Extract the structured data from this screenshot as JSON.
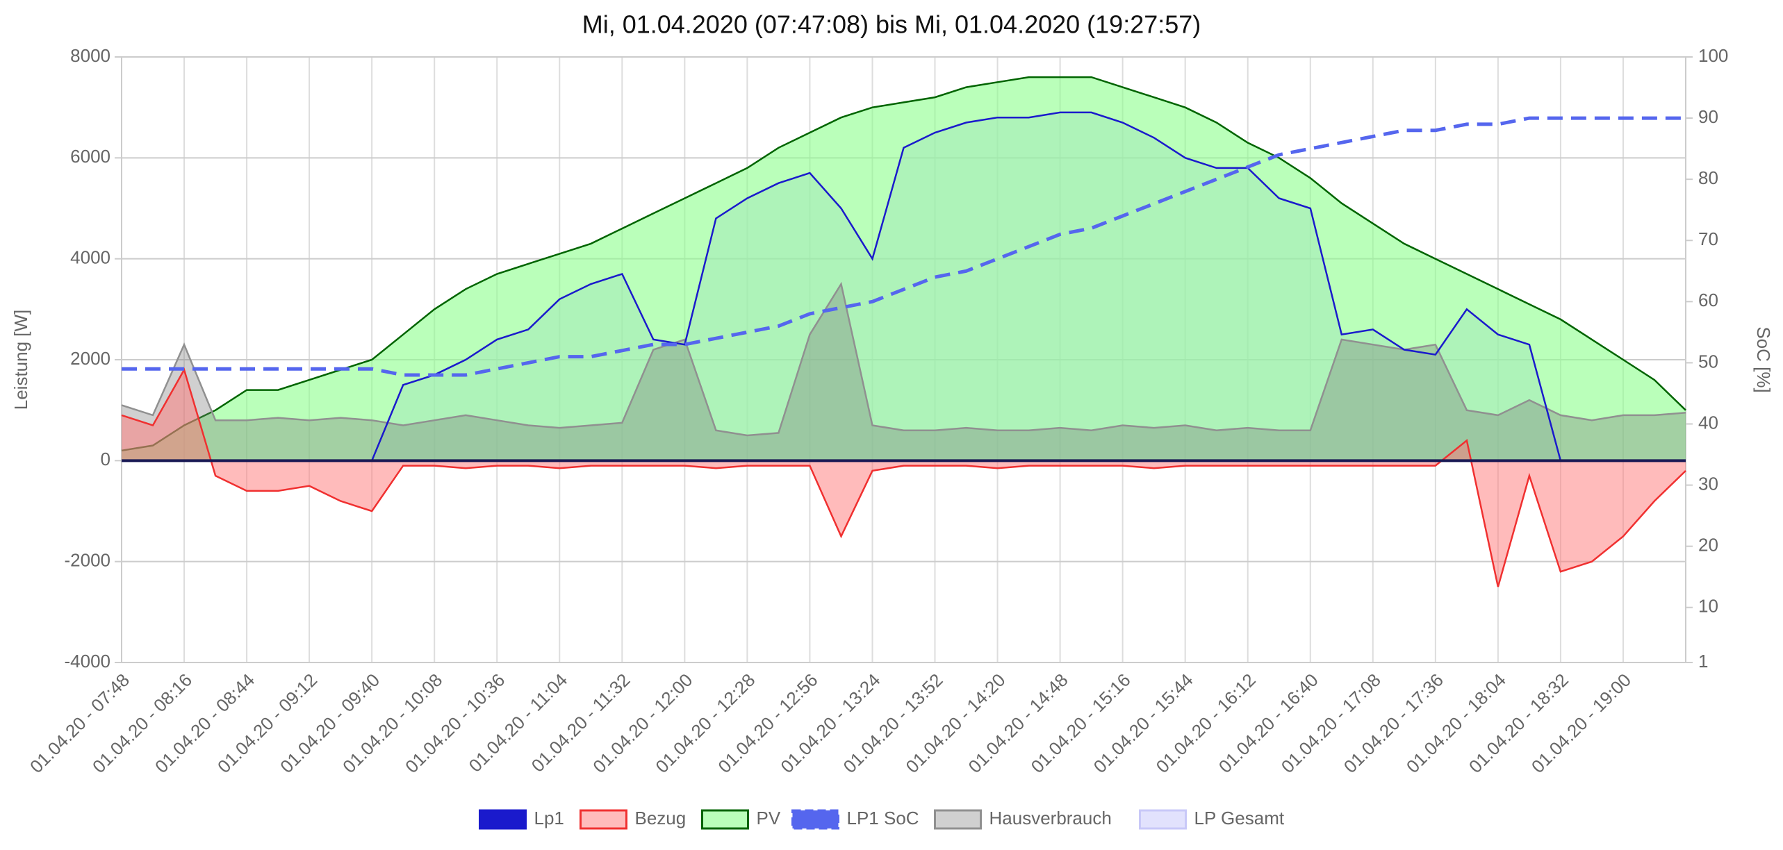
{
  "chart_data": {
    "type": "line",
    "title": "Mi, 01.04.2020 (07:47:08) bis Mi, 01.04.2020 (19:27:57)",
    "y_label": "Leistung [W]",
    "y2_label": "SoC [%]",
    "categories": [
      "01.04.20 - 07:48",
      null,
      "01.04.20 - 08:16",
      null,
      "01.04.20 - 08:44",
      null,
      "01.04.20 - 09:12",
      null,
      "01.04.20 - 09:40",
      null,
      "01.04.20 - 10:08",
      null,
      "01.04.20 - 10:36",
      null,
      "01.04.20 - 11:04",
      null,
      "01.04.20 - 11:32",
      null,
      "01.04.20 - 12:00",
      null,
      "01.04.20 - 12:28",
      null,
      "01.04.20 - 12:56",
      null,
      "01.04.20 - 13:24",
      null,
      "01.04.20 - 13:52",
      null,
      "01.04.20 - 14:20",
      null,
      "01.04.20 - 14:48",
      null,
      "01.04.20 - 15:16",
      null,
      "01.04.20 - 15:44",
      null,
      "01.04.20 - 16:12",
      null,
      "01.04.20 - 16:40",
      null,
      "01.04.20 - 17:08",
      null,
      "01.04.20 - 17:36",
      null,
      "01.04.20 - 18:04",
      null,
      "01.04.20 - 18:32",
      null,
      "01.04.20 - 19:00",
      null,
      null
    ],
    "ylim": [
      -4000,
      8000
    ],
    "yticks": [
      -4000,
      -2000,
      0,
      2000,
      4000,
      6000,
      8000
    ],
    "y2lim": [
      1,
      100
    ],
    "y2ticks": [
      1,
      10,
      20,
      30,
      40,
      50,
      60,
      70,
      80,
      90,
      100
    ],
    "grid": true,
    "legend": "bottom",
    "series": [
      {
        "name": "LP Gesamt",
        "color": "#c8c8f8",
        "fill": "rgba(190,190,250,0.45)",
        "legend_order": 5,
        "values": [
          0,
          0,
          0,
          0,
          0,
          0,
          0,
          0,
          0,
          1500,
          1700,
          2000,
          2400,
          2600,
          3200,
          3500,
          3700,
          2400,
          2300,
          4800,
          5200,
          5500,
          5700,
          5000,
          4000,
          6200,
          6500,
          6700,
          6800,
          6800,
          6900,
          6900,
          6700,
          6400,
          6000,
          5800,
          5800,
          5200,
          5000,
          2500,
          2600,
          2200,
          2100,
          3000,
          2500,
          2300,
          0,
          0,
          0,
          0,
          0
        ]
      },
      {
        "name": "PV",
        "color": "#006400",
        "fill": "rgba(140,255,140,0.6)",
        "legend_order": 2,
        "values": [
          200,
          300,
          700,
          1000,
          1400,
          1400,
          1600,
          1800,
          2000,
          2500,
          3000,
          3400,
          3700,
          3900,
          4100,
          4300,
          4600,
          4900,
          5200,
          5500,
          5800,
          6200,
          6500,
          6800,
          7000,
          7100,
          7200,
          7400,
          7500,
          7600,
          7600,
          7600,
          7400,
          7200,
          7000,
          6700,
          6300,
          6000,
          5600,
          5100,
          4700,
          4300,
          4000,
          3700,
          3400,
          3100,
          2800,
          2400,
          2000,
          1600,
          1000
        ]
      },
      {
        "name": "Hausverbrauch",
        "color": "#909090",
        "fill": "rgba(120,120,120,0.35)",
        "legend_order": 4,
        "values": [
          1100,
          900,
          2300,
          800,
          800,
          850,
          800,
          850,
          800,
          700,
          800,
          900,
          800,
          700,
          650,
          700,
          750,
          2200,
          2400,
          600,
          500,
          550,
          2500,
          3500,
          700,
          600,
          600,
          650,
          600,
          600,
          650,
          600,
          700,
          650,
          700,
          600,
          650,
          600,
          600,
          2400,
          2300,
          2200,
          2300,
          1000,
          900,
          1200,
          900,
          800,
          900,
          900,
          950
        ]
      },
      {
        "name": "Bezug",
        "color": "#f03030",
        "fill": "rgba(255,120,120,0.5)",
        "legend_order": 1,
        "values": [
          900,
          700,
          1800,
          -300,
          -600,
          -600,
          -500,
          -800,
          -1000,
          -100,
          -100,
          -150,
          -100,
          -100,
          -150,
          -100,
          -100,
          -100,
          -100,
          -150,
          -100,
          -100,
          -100,
          -1500,
          -200,
          -100,
          -100,
          -100,
          -150,
          -100,
          -100,
          -100,
          -100,
          -150,
          -100,
          -100,
          -100,
          -100,
          -100,
          -100,
          -100,
          -100,
          -100,
          400,
          -2500,
          -300,
          -2200,
          -2000,
          -1500,
          -800,
          -200
        ]
      },
      {
        "name": "Lp1",
        "color": "#1a1acc",
        "fill": "none",
        "legend_order": 0,
        "values": [
          0,
          0,
          0,
          0,
          0,
          0,
          0,
          0,
          0,
          1500,
          1700,
          2000,
          2400,
          2600,
          3200,
          3500,
          3700,
          2400,
          2300,
          4800,
          5200,
          5500,
          5700,
          5000,
          4000,
          6200,
          6500,
          6700,
          6800,
          6800,
          6900,
          6900,
          6700,
          6400,
          6000,
          5800,
          5800,
          5200,
          5000,
          2500,
          2600,
          2200,
          2100,
          3000,
          2500,
          2300,
          0,
          0,
          0,
          0,
          0
        ]
      },
      {
        "name": "LP1 SoC",
        "color": "#5566ee",
        "fill": "none",
        "dashed": true,
        "axis": "y2",
        "legend_order": 3,
        "values": [
          49,
          49,
          49,
          49,
          49,
          49,
          49,
          49,
          49,
          48,
          48,
          48,
          49,
          50,
          51,
          51,
          52,
          53,
          53,
          54,
          55,
          56,
          58,
          59,
          60,
          62,
          64,
          65,
          67,
          69,
          71,
          72,
          74,
          76,
          78,
          80,
          82,
          84,
          85,
          86,
          87,
          88,
          88,
          89,
          89,
          90,
          90,
          90,
          90,
          90,
          90
        ]
      }
    ]
  }
}
